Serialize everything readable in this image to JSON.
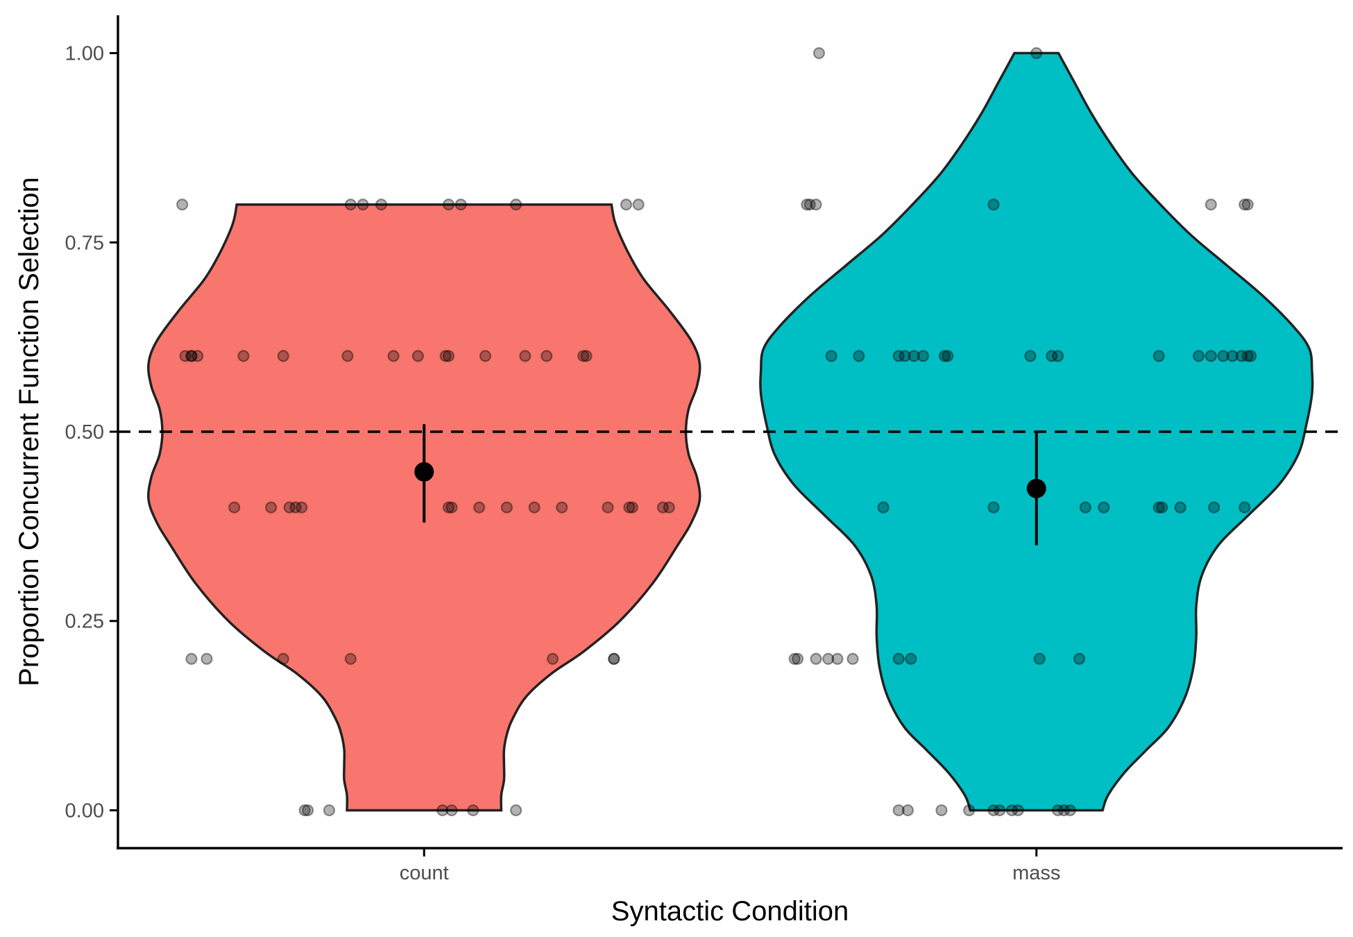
{
  "chart_data": {
    "type": "violin",
    "xlabel": "Syntactic Condition",
    "ylabel": "Proportion Concurrent Function Selection",
    "ylim": [
      -0.05,
      1.05
    ],
    "y_ticks": [
      0.0,
      0.25,
      0.5,
      0.75,
      1.0
    ],
    "y_tick_labels": [
      "0.00",
      "0.25",
      "0.50",
      "0.75",
      "1.00"
    ],
    "reference_line": 0.5,
    "categories": [
      "count",
      "mass"
    ],
    "series": [
      {
        "name": "count",
        "color": "#F8766D",
        "violin_range": [
          0.0,
          0.8
        ],
        "density_profile": [
          [
            0.0,
            0.28
          ],
          [
            0.02,
            0.28
          ],
          [
            0.04,
            0.29
          ],
          [
            0.06,
            0.29
          ],
          [
            0.08,
            0.29
          ],
          [
            0.1,
            0.3
          ],
          [
            0.12,
            0.32
          ],
          [
            0.15,
            0.37
          ],
          [
            0.18,
            0.46
          ],
          [
            0.21,
            0.58
          ],
          [
            0.25,
            0.71
          ],
          [
            0.3,
            0.83
          ],
          [
            0.35,
            0.92
          ],
          [
            0.38,
            0.97
          ],
          [
            0.41,
            1.0
          ],
          [
            0.44,
            0.99
          ],
          [
            0.47,
            0.96
          ],
          [
            0.5,
            0.95
          ],
          [
            0.53,
            0.96
          ],
          [
            0.56,
            0.99
          ],
          [
            0.59,
            1.0
          ],
          [
            0.62,
            0.97
          ],
          [
            0.66,
            0.89
          ],
          [
            0.7,
            0.8
          ],
          [
            0.73,
            0.75
          ],
          [
            0.76,
            0.71
          ],
          [
            0.78,
            0.69
          ],
          [
            0.8,
            0.68
          ]
        ],
        "mean": 0.447,
        "err_low": 0.38,
        "err_high": 0.51,
        "points": [
          [
            -0.395,
            0.8
          ],
          [
            -0.12,
            0.8
          ],
          [
            -0.1,
            0.8
          ],
          [
            -0.07,
            0.8
          ],
          [
            0.04,
            0.8
          ],
          [
            0.06,
            0.8
          ],
          [
            0.15,
            0.8
          ],
          [
            0.33,
            0.8
          ],
          [
            0.35,
            0.8
          ],
          [
            -0.39,
            0.6
          ],
          [
            -0.38,
            0.6
          ],
          [
            -0.38,
            0.6
          ],
          [
            -0.37,
            0.6
          ],
          [
            -0.295,
            0.6
          ],
          [
            -0.23,
            0.6
          ],
          [
            -0.125,
            0.6
          ],
          [
            -0.05,
            0.6
          ],
          [
            -0.01,
            0.6
          ],
          [
            0.035,
            0.6
          ],
          [
            0.04,
            0.6
          ],
          [
            0.1,
            0.6
          ],
          [
            0.165,
            0.6
          ],
          [
            0.2,
            0.6
          ],
          [
            0.26,
            0.6
          ],
          [
            0.265,
            0.6
          ],
          [
            -0.31,
            0.4
          ],
          [
            -0.25,
            0.4
          ],
          [
            -0.22,
            0.4
          ],
          [
            -0.21,
            0.4
          ],
          [
            -0.2,
            0.4
          ],
          [
            0.04,
            0.4
          ],
          [
            0.045,
            0.4
          ],
          [
            0.09,
            0.4
          ],
          [
            0.135,
            0.4
          ],
          [
            0.18,
            0.4
          ],
          [
            0.225,
            0.4
          ],
          [
            0.3,
            0.4
          ],
          [
            0.335,
            0.4
          ],
          [
            0.34,
            0.4
          ],
          [
            0.39,
            0.4
          ],
          [
            0.4,
            0.4
          ],
          [
            -0.38,
            0.2
          ],
          [
            -0.355,
            0.2
          ],
          [
            -0.23,
            0.2
          ],
          [
            -0.12,
            0.2
          ],
          [
            0.21,
            0.2
          ],
          [
            0.31,
            0.2
          ],
          [
            0.31,
            0.2
          ],
          [
            -0.195,
            0.0
          ],
          [
            -0.19,
            0.0
          ],
          [
            -0.155,
            0.0
          ],
          [
            0.03,
            0.0
          ],
          [
            0.045,
            0.0
          ],
          [
            0.08,
            0.0
          ],
          [
            0.15,
            0.0
          ]
        ]
      },
      {
        "name": "mass",
        "color": "#00BFC4",
        "violin_range": [
          0.0,
          1.0
        ],
        "density_profile": [
          [
            0.0,
            0.24
          ],
          [
            0.02,
            0.26
          ],
          [
            0.05,
            0.32
          ],
          [
            0.08,
            0.4
          ],
          [
            0.11,
            0.48
          ],
          [
            0.15,
            0.54
          ],
          [
            0.19,
            0.57
          ],
          [
            0.23,
            0.58
          ],
          [
            0.27,
            0.58
          ],
          [
            0.31,
            0.6
          ],
          [
            0.35,
            0.66
          ],
          [
            0.39,
            0.77
          ],
          [
            0.43,
            0.88
          ],
          [
            0.47,
            0.95
          ],
          [
            0.51,
            0.98
          ],
          [
            0.55,
            1.0
          ],
          [
            0.58,
            1.0
          ],
          [
            0.61,
            0.99
          ],
          [
            0.64,
            0.93
          ],
          [
            0.68,
            0.82
          ],
          [
            0.72,
            0.69
          ],
          [
            0.76,
            0.56
          ],
          [
            0.8,
            0.45
          ],
          [
            0.84,
            0.35
          ],
          [
            0.88,
            0.27
          ],
          [
            0.92,
            0.2
          ],
          [
            0.96,
            0.14
          ],
          [
            0.98,
            0.11
          ],
          [
            1.0,
            0.08
          ]
        ],
        "mean": 0.425,
        "err_low": 0.35,
        "err_high": 0.5,
        "points": [
          [
            -0.355,
            1.0
          ],
          [
            0.0,
            1.0
          ],
          [
            -0.375,
            0.8
          ],
          [
            -0.37,
            0.8
          ],
          [
            -0.36,
            0.8
          ],
          [
            -0.07,
            0.8
          ],
          [
            0.285,
            0.8
          ],
          [
            0.34,
            0.8
          ],
          [
            0.345,
            0.8
          ],
          [
            -0.335,
            0.6
          ],
          [
            -0.29,
            0.6
          ],
          [
            -0.225,
            0.6
          ],
          [
            -0.215,
            0.6
          ],
          [
            -0.2,
            0.6
          ],
          [
            -0.185,
            0.6
          ],
          [
            -0.15,
            0.6
          ],
          [
            -0.145,
            0.6
          ],
          [
            -0.01,
            0.6
          ],
          [
            0.025,
            0.6
          ],
          [
            0.035,
            0.6
          ],
          [
            0.2,
            0.6
          ],
          [
            0.265,
            0.6
          ],
          [
            0.285,
            0.6
          ],
          [
            0.305,
            0.6
          ],
          [
            0.32,
            0.6
          ],
          [
            0.335,
            0.6
          ],
          [
            0.345,
            0.6
          ],
          [
            0.35,
            0.6
          ],
          [
            -0.25,
            0.4
          ],
          [
            -0.07,
            0.4
          ],
          [
            0.08,
            0.4
          ],
          [
            0.11,
            0.4
          ],
          [
            0.2,
            0.4
          ],
          [
            0.205,
            0.4
          ],
          [
            0.235,
            0.4
          ],
          [
            0.29,
            0.4
          ],
          [
            0.34,
            0.4
          ],
          [
            -0.395,
            0.2
          ],
          [
            -0.39,
            0.2
          ],
          [
            -0.36,
            0.2
          ],
          [
            -0.34,
            0.2
          ],
          [
            -0.325,
            0.2
          ],
          [
            -0.3,
            0.2
          ],
          [
            -0.225,
            0.2
          ],
          [
            -0.205,
            0.2
          ],
          [
            0.005,
            0.2
          ],
          [
            0.07,
            0.2
          ],
          [
            -0.225,
            0.0
          ],
          [
            -0.21,
            0.0
          ],
          [
            -0.155,
            0.0
          ],
          [
            -0.11,
            0.0
          ],
          [
            -0.07,
            0.0
          ],
          [
            -0.06,
            0.0
          ],
          [
            -0.04,
            0.0
          ],
          [
            -0.03,
            0.0
          ],
          [
            0.035,
            0.0
          ],
          [
            0.045,
            0.0
          ],
          [
            0.055,
            0.0
          ]
        ]
      }
    ]
  }
}
